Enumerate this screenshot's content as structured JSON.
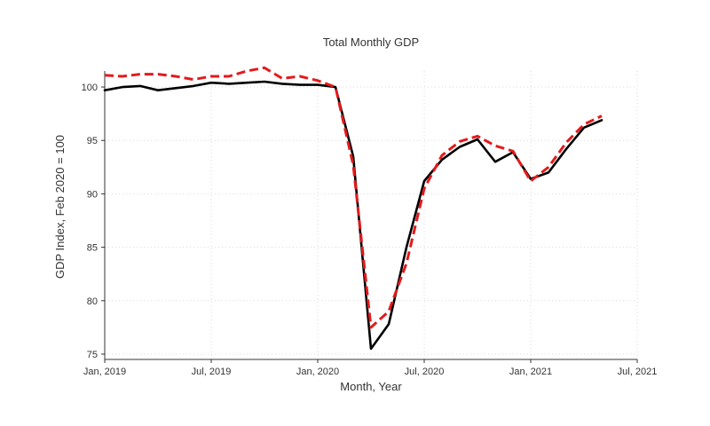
{
  "chart_data": {
    "type": "line",
    "title": "Total Monthly GDP",
    "xlabel": "Month, Year",
    "ylabel": "GDP Index, Feb 2020 = 100",
    "xlim": [
      "2019-01",
      "2021-07"
    ],
    "ylim": [
      74.5,
      101.5
    ],
    "grid": true,
    "x_ticks": [
      "Jan, 2019",
      "Jul, 2019",
      "Jan, 2020",
      "Jul, 2020",
      "Jan, 2021",
      "Jul, 2021"
    ],
    "x_tick_dates": [
      "2019-01",
      "2019-07",
      "2020-01",
      "2020-07",
      "2021-01",
      "2021-07"
    ],
    "y_ticks": [
      75,
      80,
      85,
      90,
      95,
      100
    ],
    "x": [
      "2019-01",
      "2019-02",
      "2019-03",
      "2019-04",
      "2019-05",
      "2019-06",
      "2019-07",
      "2019-08",
      "2019-09",
      "2019-10",
      "2019-11",
      "2019-12",
      "2020-01",
      "2020-02",
      "2020-03",
      "2020-04",
      "2020-05",
      "2020-06",
      "2020-07",
      "2020-08",
      "2020-09",
      "2020-10",
      "2020-11",
      "2020-12",
      "2021-01",
      "2021-02",
      "2021-03",
      "2021-04",
      "2021-05"
    ],
    "series": [
      {
        "color": "#000000",
        "style": "solid",
        "values": [
          99.7,
          100.0,
          100.1,
          99.7,
          99.9,
          100.1,
          100.4,
          100.3,
          100.4,
          100.5,
          100.3,
          100.2,
          100.2,
          100.0,
          93.5,
          75.5,
          77.8,
          85.0,
          91.2,
          93.2,
          94.4,
          95.1,
          93.0,
          93.9,
          91.4,
          92.0,
          94.2,
          96.2,
          96.9
        ]
      },
      {
        "color": "#e31a1c",
        "style": "dashed",
        "values": [
          101.1,
          101.0,
          101.2,
          101.2,
          101.0,
          100.7,
          101.0,
          101.0,
          101.5,
          101.8,
          100.8,
          101.0,
          100.6,
          100.0,
          92.7,
          77.5,
          79.0,
          83.5,
          90.5,
          93.6,
          94.9,
          95.4,
          94.5,
          94.0,
          91.2,
          92.5,
          94.8,
          96.5,
          97.3
        ]
      }
    ]
  }
}
